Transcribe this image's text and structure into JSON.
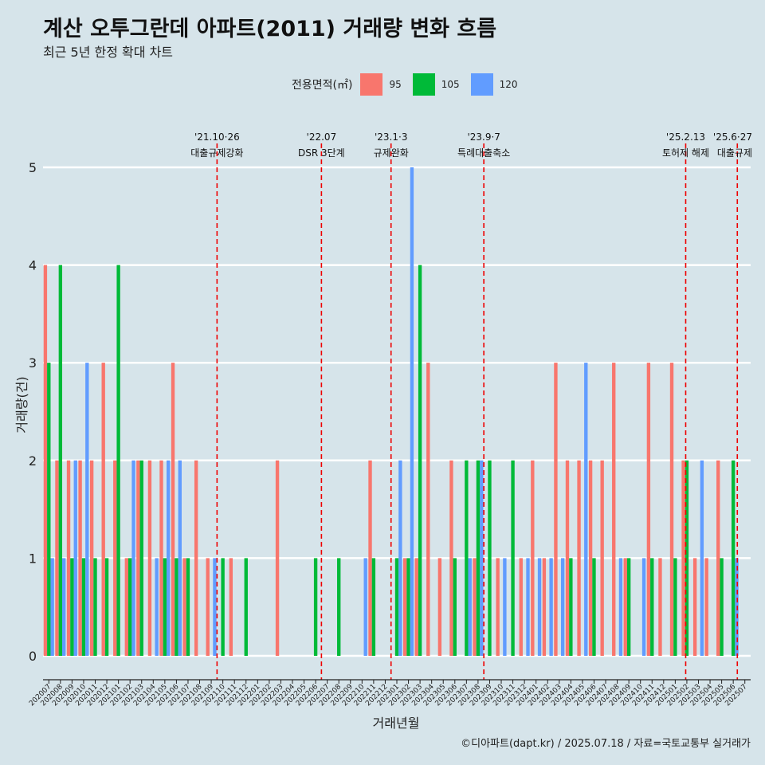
{
  "title": "계산 오투그란데 아파트(2011) 거래량 변화 흐름",
  "subtitle": "최근 5년 한정 확대 차트",
  "source": "©디아파트(dapt.kr) / 2025.07.18 / 자료=국토교통부 실거래가",
  "colors": {
    "95": "#f8766d",
    "105": "#00ba38",
    "120": "#619cff",
    "background": "#d6e4ea",
    "refline": "#ee0000"
  },
  "chart_data": {
    "type": "bar",
    "xlabel": "거래년월",
    "ylabel": "거래량(건)",
    "ylim": [
      0,
      5
    ],
    "yticks": [
      0,
      1,
      2,
      3,
      4,
      5
    ],
    "grid": true,
    "legend": {
      "title": "전용면적(㎡)",
      "position": "top",
      "labels": [
        "95",
        "105",
        "120"
      ]
    },
    "categories": [
      "202007",
      "202008",
      "202009",
      "202010",
      "202011",
      "202012",
      "202101",
      "202102",
      "202103",
      "202104",
      "202105",
      "202106",
      "202107",
      "202108",
      "202109",
      "202110",
      "202111",
      "202112",
      "202201",
      "202202",
      "202203",
      "202204",
      "202205",
      "202206",
      "202207",
      "202208",
      "202209",
      "202210",
      "202211",
      "202212",
      "202301",
      "202302",
      "202303",
      "202304",
      "202305",
      "202306",
      "202307",
      "202308",
      "202309",
      "202310",
      "202311",
      "202312",
      "202401",
      "202402",
      "202403",
      "202404",
      "202405",
      "202406",
      "202407",
      "202408",
      "202409",
      "202410",
      "202411",
      "202412",
      "202501",
      "202502",
      "202503",
      "202504",
      "202505",
      "202506",
      "202507"
    ],
    "data": [
      {
        "month": "202007",
        "values": {
          "95": 4,
          "105": 3,
          "120": 1
        }
      },
      {
        "month": "202008",
        "values": {
          "95": 2,
          "105": 4,
          "120": 1
        }
      },
      {
        "month": "202009",
        "values": {
          "95": 2,
          "105": 1,
          "120": 2
        }
      },
      {
        "month": "202010",
        "values": {
          "95": 2,
          "105": 1,
          "120": 3
        }
      },
      {
        "month": "202011",
        "values": {
          "95": 2,
          "105": 1
        }
      },
      {
        "month": "202012",
        "values": {
          "95": 3,
          "105": 1
        }
      },
      {
        "month": "202101",
        "values": {
          "95": 2,
          "105": 4
        }
      },
      {
        "month": "202102",
        "values": {
          "95": 1,
          "105": 1,
          "120": 2
        }
      },
      {
        "month": "202103",
        "values": {
          "95": 2,
          "105": 2
        }
      },
      {
        "month": "202104",
        "values": {
          "95": 2,
          "120": 1
        }
      },
      {
        "month": "202105",
        "values": {
          "95": 2,
          "105": 1,
          "120": 2
        }
      },
      {
        "month": "202106",
        "values": {
          "95": 3,
          "105": 1,
          "120": 2
        }
      },
      {
        "month": "202107",
        "values": {
          "95": 1,
          "105": 1
        }
      },
      {
        "month": "202108",
        "values": {
          "95": 2
        }
      },
      {
        "month": "202109",
        "values": {
          "95": 1,
          "120": 1
        }
      },
      {
        "month": "202110",
        "values": {
          "105": 1
        }
      },
      {
        "month": "202111",
        "values": {
          "95": 1
        }
      },
      {
        "month": "202112",
        "values": {
          "105": 1
        }
      },
      {
        "month": "202201",
        "values": {}
      },
      {
        "month": "202202",
        "values": {}
      },
      {
        "month": "202203",
        "values": {
          "95": 2
        }
      },
      {
        "month": "202204",
        "values": {}
      },
      {
        "month": "202205",
        "values": {}
      },
      {
        "month": "202206",
        "values": {
          "105": 1
        }
      },
      {
        "month": "202207",
        "values": {}
      },
      {
        "month": "202208",
        "values": {
          "105": 1
        }
      },
      {
        "month": "202209",
        "values": {}
      },
      {
        "month": "202210",
        "values": {
          "120": 1
        }
      },
      {
        "month": "202211",
        "values": {
          "95": 2,
          "105": 1
        }
      },
      {
        "month": "202212",
        "values": {}
      },
      {
        "month": "202301",
        "values": {
          "105": 1,
          "120": 2
        }
      },
      {
        "month": "202302",
        "values": {
          "95": 1,
          "105": 1,
          "120": 5
        }
      },
      {
        "month": "202303",
        "values": {
          "95": 1,
          "105": 4
        }
      },
      {
        "month": "202304",
        "values": {
          "95": 3
        }
      },
      {
        "month": "202305",
        "values": {
          "95": 1
        }
      },
      {
        "month": "202306",
        "values": {
          "95": 2,
          "105": 1
        }
      },
      {
        "month": "202307",
        "values": {
          "105": 2,
          "120": 1
        }
      },
      {
        "month": "202308",
        "values": {
          "95": 1,
          "105": 2,
          "120": 2
        }
      },
      {
        "month": "202309",
        "values": {
          "105": 2
        }
      },
      {
        "month": "202310",
        "values": {
          "95": 1,
          "120": 1
        }
      },
      {
        "month": "202311",
        "values": {
          "105": 2
        }
      },
      {
        "month": "202312",
        "values": {
          "95": 1,
          "120": 1
        }
      },
      {
        "month": "202401",
        "values": {
          "95": 2,
          "120": 1
        }
      },
      {
        "month": "202402",
        "values": {
          "95": 1,
          "120": 1
        }
      },
      {
        "month": "202403",
        "values": {
          "95": 3,
          "120": 1
        }
      },
      {
        "month": "202404",
        "values": {
          "95": 2,
          "105": 1
        }
      },
      {
        "month": "202405",
        "values": {
          "95": 2,
          "120": 3
        }
      },
      {
        "month": "202406",
        "values": {
          "95": 2,
          "105": 1
        }
      },
      {
        "month": "202407",
        "values": {
          "95": 2
        }
      },
      {
        "month": "202408",
        "values": {
          "95": 3,
          "120": 1
        }
      },
      {
        "month": "202409",
        "values": {
          "95": 1,
          "105": 1
        }
      },
      {
        "month": "202410",
        "values": {
          "120": 1
        }
      },
      {
        "month": "202411",
        "values": {
          "95": 3,
          "105": 1
        }
      },
      {
        "month": "202412",
        "values": {
          "95": 1
        }
      },
      {
        "month": "202501",
        "values": {
          "95": 3,
          "105": 1
        }
      },
      {
        "month": "202502",
        "values": {
          "95": 2,
          "105": 2
        }
      },
      {
        "month": "202503",
        "values": {
          "95": 1,
          "120": 2
        }
      },
      {
        "month": "202504",
        "values": {
          "95": 1
        }
      },
      {
        "month": "202505",
        "values": {
          "95": 2,
          "105": 1
        }
      },
      {
        "month": "202506",
        "values": {
          "105": 2,
          "120": 1
        }
      },
      {
        "month": "202507",
        "values": {}
      }
    ],
    "annotations": [
      {
        "at": "202110",
        "offset": 0.0,
        "date": "'21.10·26",
        "label": "대출규제강화"
      },
      {
        "at": "202207",
        "offset": 0.0,
        "date": "'22.07",
        "label": "DSR 3단계"
      },
      {
        "at": "202301",
        "offset": 0.0,
        "date": "'23.1·3",
        "label": "규제완화"
      },
      {
        "at": "202309",
        "offset": 0.0,
        "date": "'23.9·7",
        "label": "특례대출축소"
      },
      {
        "at": "202502",
        "offset": 0.4,
        "date": "'25.2.13",
        "label": "토허제 해제"
      },
      {
        "at": "202506",
        "offset": 0.85,
        "date": "'25.6·27",
        "label": "대출규제"
      }
    ]
  }
}
